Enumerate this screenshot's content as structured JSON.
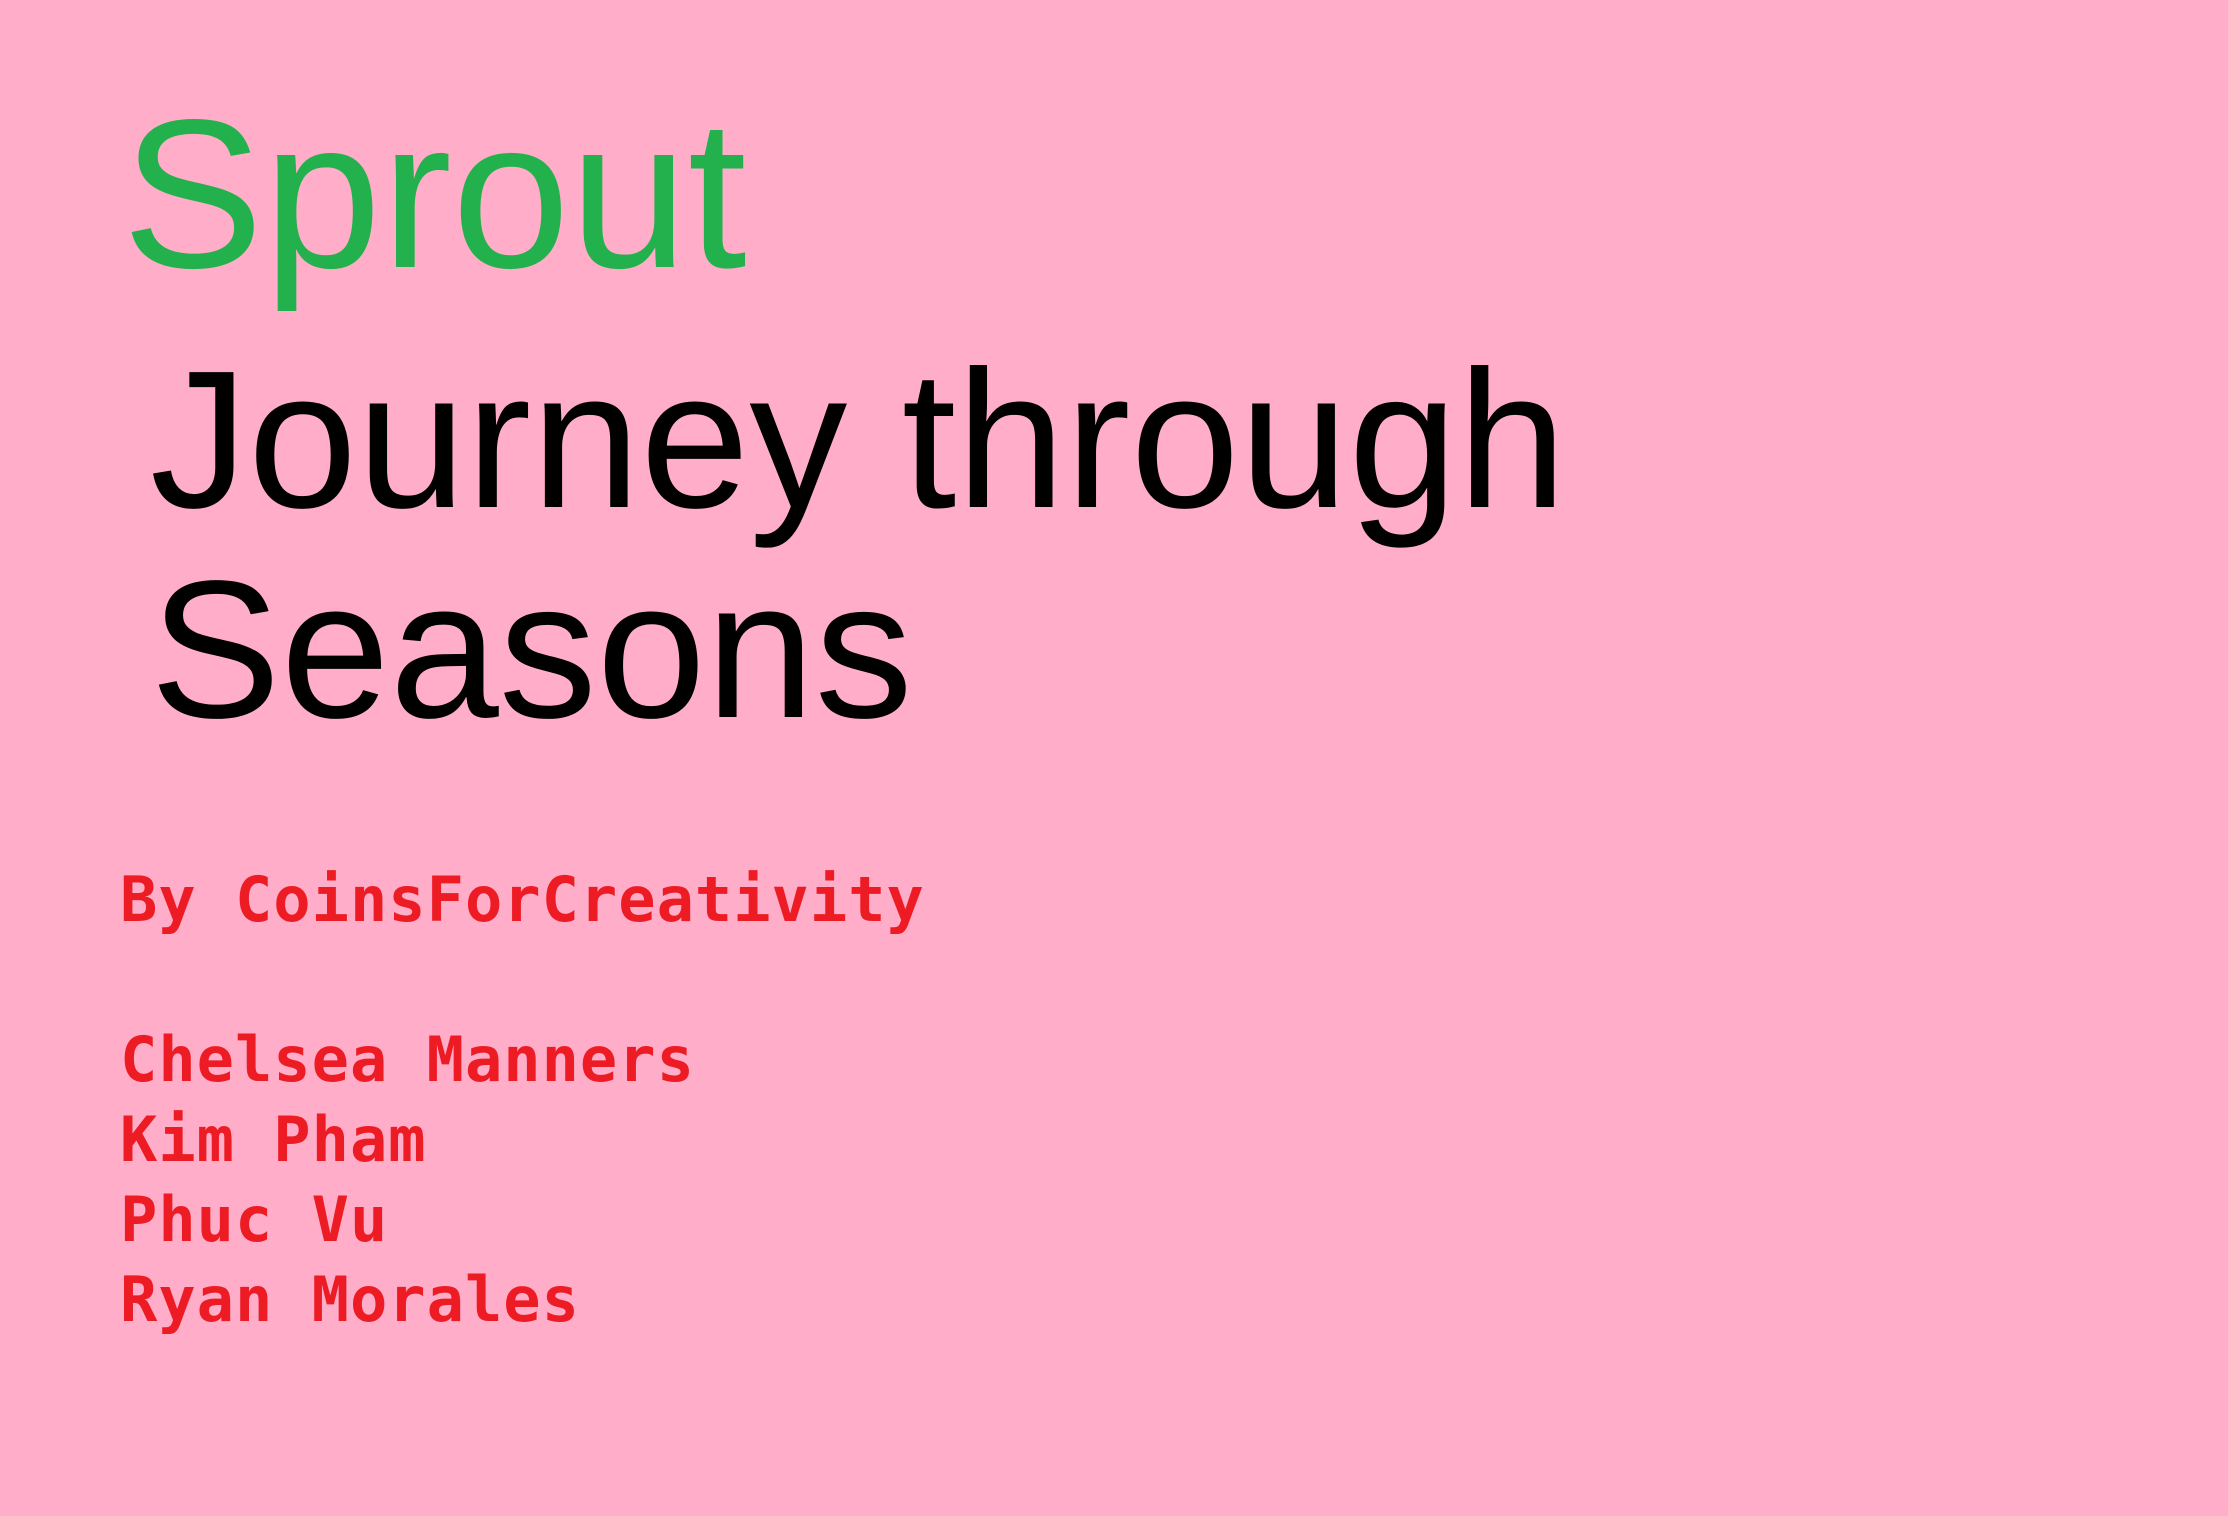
{
  "title": "Sprout",
  "subtitle_lines": [
    "Journey through",
    "Seasons"
  ],
  "credits": {
    "studio": "By CoinsForCreativity",
    "members": [
      "Chelsea Manners",
      "Kim Pham",
      "Phuc Vu",
      "Ryan Morales"
    ]
  },
  "colors": {
    "background": "#ffadc8",
    "title": "#22b14c",
    "subtitle": "#000000",
    "credits": "#ed1c24"
  }
}
